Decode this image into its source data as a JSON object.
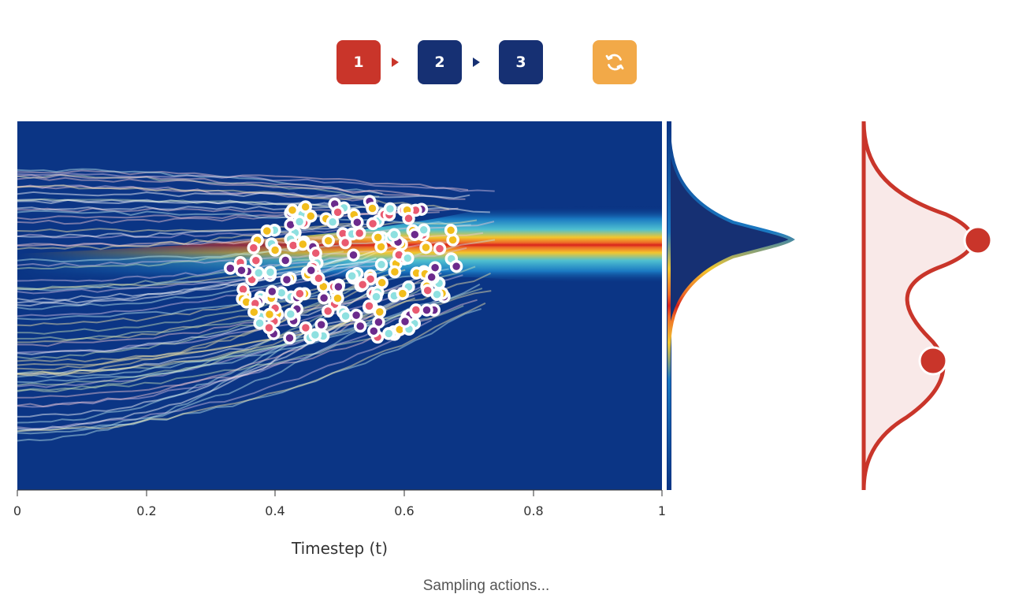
{
  "controls": {
    "steps": [
      {
        "label": "1",
        "state": "active",
        "color": "#c9352a"
      },
      {
        "label": "2",
        "state": "pending",
        "color": "#163073"
      },
      {
        "label": "3",
        "state": "pending",
        "color": "#163073"
      }
    ],
    "reset_icon": "refresh-icon",
    "reset_color": "#f2a948"
  },
  "chart_data": {
    "type": "scatter",
    "title": "",
    "xlabel": "Timestep (t)",
    "ylabel": "",
    "x_ticks": [
      "0",
      "0.2",
      "0.4",
      "0.6",
      "0.8",
      "1"
    ],
    "xlim": [
      0,
      1
    ],
    "background": "density heatmap (blue to red), bimodal target distributions on right",
    "colors": {
      "background": "#0b3585",
      "hot": "#d7231d",
      "warm": "#f2c72e",
      "cool": "#1a79c2",
      "target_curve": "#c9352a",
      "target_fill": "#f9e9e8",
      "particle_pink": "#e95a70",
      "particle_yellow": "#f2bd1c",
      "particle_cyan": "#8ee0e0",
      "particle_purple": "#6b2a8c"
    }
  },
  "status": {
    "text": "Sampling actions..."
  }
}
